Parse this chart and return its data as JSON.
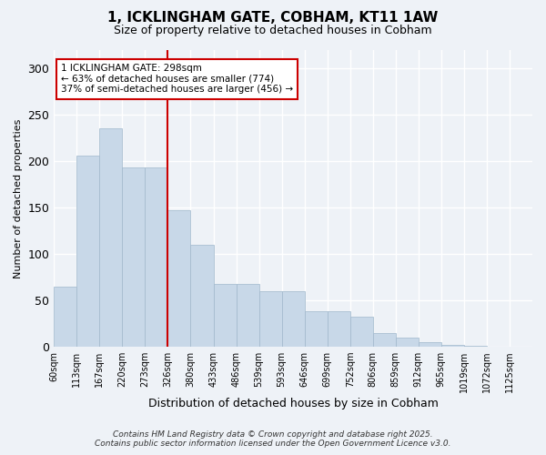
{
  "title": "1, ICKLINGHAM GATE, COBHAM, KT11 1AW",
  "subtitle": "Size of property relative to detached houses in Cobham",
  "xlabel": "Distribution of detached houses by size in Cobham",
  "ylabel": "Number of detached properties",
  "bar_color": "#c8d8e8",
  "bar_edge_color": "#a0b8cc",
  "bg_color": "#eef2f7",
  "grid_color": "#ffffff",
  "tick_labels": [
    "60sqm",
    "113sqm",
    "167sqm",
    "220sqm",
    "273sqm",
    "326sqm",
    "380sqm",
    "433sqm",
    "486sqm",
    "539sqm",
    "593sqm",
    "646sqm",
    "699sqm",
    "752sqm",
    "806sqm",
    "859sqm",
    "912sqm",
    "965sqm",
    "1019sqm",
    "1072sqm",
    "1125sqm"
  ],
  "bar_heights": [
    65,
    206,
    236,
    193,
    193,
    147,
    110,
    68,
    68,
    60,
    60,
    38,
    38,
    32,
    15,
    10,
    5,
    2,
    1,
    0,
    0
  ],
  "annotation_text": "1 ICKLINGHAM GATE: 298sqm\n← 63% of detached houses are smaller (774)\n37% of semi-detached houses are larger (456) →",
  "vline_x": 5,
  "vline_color": "#cc0000",
  "annotation_box_edge_color": "#cc0000",
  "footer_line1": "Contains HM Land Registry data © Crown copyright and database right 2025.",
  "footer_line2": "Contains public sector information licensed under the Open Government Licence v3.0.",
  "ylim": [
    0,
    320
  ],
  "yticks": [
    0,
    50,
    100,
    150,
    200,
    250,
    300
  ]
}
